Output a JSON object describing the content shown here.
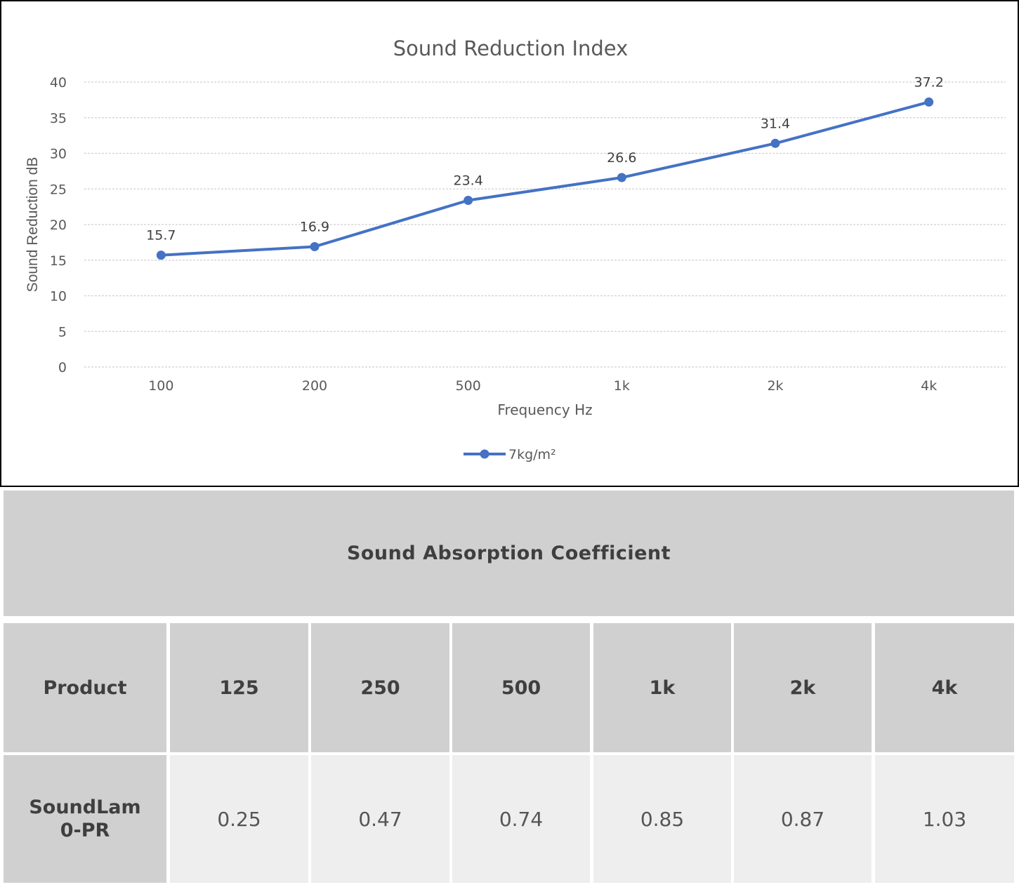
{
  "chart_data": {
    "type": "line",
    "title": "Sound Reduction Index",
    "xlabel": "Frequency Hz",
    "ylabel": "Sound Reduction dB",
    "categories": [
      "100",
      "200",
      "500",
      "1k",
      "2k",
      "4k"
    ],
    "series": [
      {
        "name": "7kg/m²",
        "values": [
          15.7,
          16.9,
          23.4,
          26.6,
          31.4,
          37.2
        ],
        "color": "#4472c4"
      }
    ],
    "y_ticks": [
      "0",
      "5",
      "10",
      "15",
      "20",
      "25",
      "30",
      "35",
      "40"
    ],
    "ylim": [
      0,
      40
    ],
    "grid": "horizontal-dashed",
    "legend_position": "bottom"
  },
  "table": {
    "title": "Sound Absorption Coefficient",
    "headers": [
      "Product",
      "125",
      "250",
      "500",
      "1k",
      "2k",
      "4k"
    ],
    "row": {
      "product_line1": "SoundLam",
      "product_line2": "0-PR",
      "values": [
        "0.25",
        "0.47",
        "0.74",
        "0.85",
        "0.87",
        "1.03"
      ]
    }
  }
}
